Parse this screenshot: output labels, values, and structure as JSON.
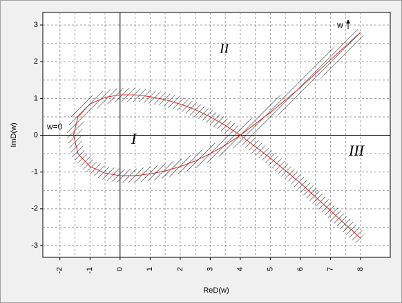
{
  "chart_data": {
    "type": "line",
    "xlabel": "ReD(w)",
    "ylabel": "ImD(w)",
    "x": [
      8,
      7,
      6,
      5,
      4,
      3.5,
      3,
      2.5,
      2,
      1.5,
      1,
      0.5,
      0,
      -0.5,
      -1,
      -1.4,
      -1.55,
      -1.4,
      -1,
      -0.5,
      0,
      0.5,
      1,
      1.5,
      2,
      2.5,
      3,
      3.5,
      4,
      5,
      6,
      7,
      8
    ],
    "series": [
      {
        "color": "#e02020",
        "values": [
          -2.8,
          -2.05,
          -1.3,
          -0.62,
          0,
          0.27,
          0.5,
          0.7,
          0.85,
          0.97,
          1.05,
          1.1,
          1.1,
          1.03,
          0.85,
          0.5,
          0,
          -0.5,
          -0.85,
          -1.03,
          -1.1,
          -1.1,
          -1.05,
          -0.97,
          -0.85,
          -0.7,
          -0.5,
          -0.27,
          0,
          0.62,
          1.3,
          2.05,
          2.8
        ]
      }
    ],
    "xlim": [
      -2.57,
      8.99
    ],
    "ylim": [
      -3.32,
      3.34
    ],
    "xticks": [
      -2,
      -1,
      0,
      1,
      2,
      3,
      4,
      5,
      6,
      7,
      8
    ],
    "yticks": [
      -3,
      -2,
      -1,
      0,
      1,
      2,
      3
    ],
    "grid": true,
    "annotations": [
      "w=0",
      "w",
      "I",
      "II",
      "III"
    ]
  }
}
